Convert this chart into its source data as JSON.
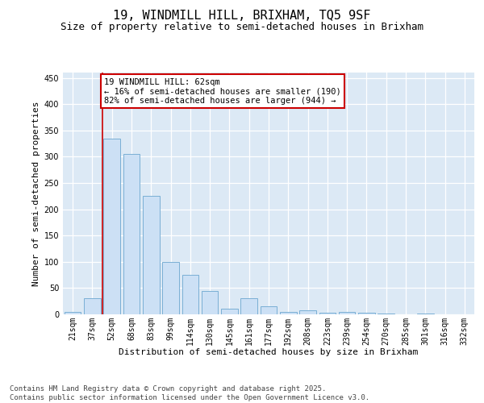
{
  "title": "19, WINDMILL HILL, BRIXHAM, TQ5 9SF",
  "subtitle": "Size of property relative to semi-detached houses in Brixham",
  "xlabel": "Distribution of semi-detached houses by size in Brixham",
  "ylabel": "Number of semi-detached properties",
  "categories": [
    "21sqm",
    "37sqm",
    "52sqm",
    "68sqm",
    "83sqm",
    "99sqm",
    "114sqm",
    "130sqm",
    "145sqm",
    "161sqm",
    "177sqm",
    "192sqm",
    "208sqm",
    "223sqm",
    "239sqm",
    "254sqm",
    "270sqm",
    "285sqm",
    "301sqm",
    "316sqm",
    "332sqm"
  ],
  "values": [
    5,
    30,
    335,
    305,
    225,
    100,
    75,
    45,
    10,
    30,
    15,
    5,
    8,
    3,
    5,
    3,
    1,
    0,
    1,
    0,
    0
  ],
  "bar_color": "#cce0f5",
  "bar_edge_color": "#7aafd4",
  "highlight_line_color": "#cc0000",
  "annotation_text": "19 WINDMILL HILL: 62sqm\n← 16% of semi-detached houses are smaller (190)\n82% of semi-detached houses are larger (944) →",
  "annotation_box_color": "#cc0000",
  "ylim": [
    0,
    460
  ],
  "yticks": [
    0,
    50,
    100,
    150,
    200,
    250,
    300,
    350,
    400,
    450
  ],
  "plot_bg_color": "#dce9f5",
  "footer_text": "Contains HM Land Registry data © Crown copyright and database right 2025.\nContains public sector information licensed under the Open Government Licence v3.0.",
  "title_fontsize": 11,
  "subtitle_fontsize": 9,
  "xlabel_fontsize": 8,
  "ylabel_fontsize": 8,
  "tick_fontsize": 7,
  "annotation_fontsize": 7.5,
  "footer_fontsize": 6.5
}
